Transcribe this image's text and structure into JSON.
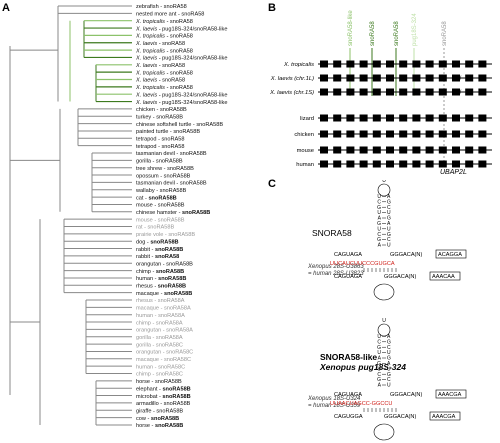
{
  "panels": {
    "a": "A",
    "b": "B",
    "c": "C"
  },
  "tree": {
    "leaves": [
      {
        "sp": "zebrafish",
        "gene": "snoRA58",
        "c": "#111",
        "bold": false
      },
      {
        "sp": "nested more ant",
        "gene": "snoRA58",
        "c": "#111",
        "bold": false
      },
      {
        "sp": "X. tropicalis",
        "gene": "snoRA58",
        "c": "#111",
        "bold": false
      },
      {
        "sp": "X. laevis",
        "gene": "pug18S-324/snoRA58-like",
        "c": "#111",
        "bold": false
      },
      {
        "sp": "X. tropicalis",
        "gene": "snoRA58",
        "c": "#111",
        "bold": false
      },
      {
        "sp": "X. laevis",
        "gene": "snoRA58",
        "c": "#111",
        "bold": false
      },
      {
        "sp": "X. tropicalis",
        "gene": "snoRA58",
        "c": "#111",
        "bold": false
      },
      {
        "sp": "X. laevis",
        "gene": "pug18S-324/snoRA58-like",
        "c": "#111",
        "bold": false
      },
      {
        "sp": "X. laevis",
        "gene": "snoRA58",
        "c": "#111",
        "bold": false
      },
      {
        "sp": "X. tropicalis",
        "gene": "snoRA58",
        "c": "#111",
        "bold": false
      },
      {
        "sp": "X. laevis",
        "gene": "snoRA58",
        "c": "#111",
        "bold": false
      },
      {
        "sp": "X. tropicalis",
        "gene": "snoRA58",
        "c": "#111",
        "bold": false
      },
      {
        "sp": "X. laevis",
        "gene": "pug18S-324/snoRA58-like",
        "c": "#111",
        "bold": false
      },
      {
        "sp": "X. laevis",
        "gene": "pug18S-324/snoRA58-like",
        "c": "#111",
        "bold": false
      },
      {
        "sp": "chicken",
        "gene": "snoRA58B",
        "c": "#111",
        "bold": false
      },
      {
        "sp": "turkey",
        "gene": "snoRA58B",
        "c": "#111",
        "bold": false
      },
      {
        "sp": "chinese softshell turtle",
        "gene": "snoRA58B",
        "c": "#111",
        "bold": false
      },
      {
        "sp": "painted turtle",
        "gene": "snoRA58B",
        "c": "#111",
        "bold": false
      },
      {
        "sp": "tetrapod",
        "gene": "snoRA58",
        "c": "#111",
        "bold": false
      },
      {
        "sp": "tetrapod",
        "gene": "snoRA58",
        "c": "#111",
        "bold": false
      },
      {
        "sp": "tasmanian devil",
        "gene": "snoRA58B",
        "c": "#111",
        "bold": false
      },
      {
        "sp": "gorilla",
        "gene": "snoRA58B",
        "c": "#111",
        "bold": false
      },
      {
        "sp": "tree shrew",
        "gene": "snoRA58B",
        "c": "#111",
        "bold": false
      },
      {
        "sp": "opossum",
        "gene": "snoRA58B",
        "c": "#111",
        "bold": false
      },
      {
        "sp": "tasmanian devil",
        "gene": "snoRA58B",
        "c": "#111",
        "bold": false
      },
      {
        "sp": "wallaby",
        "gene": "snoRA58B",
        "c": "#111",
        "bold": false
      },
      {
        "sp": "cat",
        "gene": "snoRA58B",
        "c": "#111",
        "bold": true
      },
      {
        "sp": "mouse",
        "gene": "snoRA58B",
        "c": "#111",
        "bold": false
      },
      {
        "sp": "chinese hamster",
        "gene": "snoRA58B",
        "c": "#111",
        "bold": true
      },
      {
        "sp": "mouse",
        "gene": "snoRA58B",
        "c": "#999",
        "bold": false
      },
      {
        "sp": "rat",
        "gene": "snoRA58B",
        "c": "#999",
        "bold": false
      },
      {
        "sp": "prairie vole",
        "gene": "snoRA58B",
        "c": "#999",
        "bold": false
      },
      {
        "sp": "dog",
        "gene": "snoRA58B",
        "c": "#111",
        "bold": true
      },
      {
        "sp": "rabbit",
        "gene": "snoRA58B",
        "c": "#111",
        "bold": true
      },
      {
        "sp": "rabbit",
        "gene": "snoRA58",
        "c": "#111",
        "bold": true
      },
      {
        "sp": "orangutan",
        "gene": "snoRA58B",
        "c": "#111",
        "bold": false
      },
      {
        "sp": "chimp",
        "gene": "snoRA58B",
        "c": "#111",
        "bold": true
      },
      {
        "sp": "human",
        "gene": "snoRA58B",
        "c": "#111",
        "bold": true
      },
      {
        "sp": "rhesus",
        "gene": "snoRA58B",
        "c": "#111",
        "bold": true
      },
      {
        "sp": "macaque",
        "gene": "snoRA58B",
        "c": "#111",
        "bold": true
      },
      {
        "sp": "rhesus",
        "gene": "snoRA58A",
        "c": "#999",
        "bold": false
      },
      {
        "sp": "macaque",
        "gene": "snoRA58A",
        "c": "#999",
        "bold": false
      },
      {
        "sp": "human",
        "gene": "snoRA58A",
        "c": "#999",
        "bold": false
      },
      {
        "sp": "chimp",
        "gene": "snoRA58A",
        "c": "#999",
        "bold": false
      },
      {
        "sp": "orangutan",
        "gene": "snoRA58A",
        "c": "#999",
        "bold": false
      },
      {
        "sp": "gorilla",
        "gene": "snoRA58A",
        "c": "#999",
        "bold": false
      },
      {
        "sp": "gorilla",
        "gene": "snoRA58C",
        "c": "#999",
        "bold": false
      },
      {
        "sp": "orangutan",
        "gene": "snoRA58C",
        "c": "#999",
        "bold": false
      },
      {
        "sp": "macaque",
        "gene": "snoRA58C",
        "c": "#999",
        "bold": false
      },
      {
        "sp": "human",
        "gene": "snoRA58C",
        "c": "#999",
        "bold": false
      },
      {
        "sp": "chimp",
        "gene": "snoRA58C",
        "c": "#999",
        "bold": false
      },
      {
        "sp": "horse",
        "gene": "snoRA58B",
        "c": "#111",
        "bold": false
      },
      {
        "sp": "elephant",
        "gene": "snoRA58B",
        "c": "#111",
        "bold": true
      },
      {
        "sp": "microbat",
        "gene": "snoRA58B",
        "c": "#111",
        "bold": true
      },
      {
        "sp": "armadillo",
        "gene": "snoRA58B",
        "c": "#111",
        "bold": false
      },
      {
        "sp": "giraffe",
        "gene": "snoRA58B",
        "c": "#111",
        "bold": false
      },
      {
        "sp": "cow",
        "gene": "snoRA58B",
        "c": "#111",
        "bold": true
      },
      {
        "sp": "horse",
        "gene": "snoRA58B",
        "c": "#111",
        "bold": true
      }
    ],
    "xenopus_color": "#3d7a1f",
    "xenopus_light": "#8cc26a"
  },
  "b": {
    "top_labels": [
      "snoRA58-like",
      "snoRA58",
      "snoRA58",
      "pug18S-324",
      "snoRA58"
    ],
    "rows": [
      "X. tropicalis",
      "X. laevis (chr.1L)",
      "X. laevis (chr.1S)",
      "lizard",
      "chicken",
      "mouse",
      "human"
    ],
    "gene": "UBAP2L",
    "break_mark": "//"
  },
  "c": {
    "top": {
      "title": "SNORA58",
      "sub1": "Xenopus 28S-U3863",
      "sub2": "= human 28S-U3823",
      "line1": "CAGUAGA",
      "line1b": "GGGACA(N)",
      "box1": "ACAGGA",
      "red": "UUCAUCUUCCCGUGCA",
      "line2": "CAGUAGA",
      "line2b": "GGGACA(N)",
      "box2": "AAACAA",
      "stem": [
        "U",
        "C",
        "G",
        "U",
        "A",
        "G",
        "U",
        "C",
        "G",
        "A"
      ],
      "loop": "U"
    },
    "bottom": {
      "title1": "SNORA58-like",
      "title2": "Xenopus pug18S-324",
      "sub1": "Xenopus 18S-U324",
      "sub2": "= human 18S-U359",
      "line1": "CAGUAGA",
      "line1b": "GGGACA(N)",
      "box1": "AAACGA",
      "red": "UUAACUAGCC-GGCCU",
      "line2": "CAGUGGA",
      "line2b": "GGGACA(N)",
      "box2": "AAACGA",
      "stem": [
        "U",
        "C",
        "G",
        "U",
        "A",
        "G",
        "U",
        "C",
        "G",
        "A"
      ],
      "loop": "U"
    }
  }
}
